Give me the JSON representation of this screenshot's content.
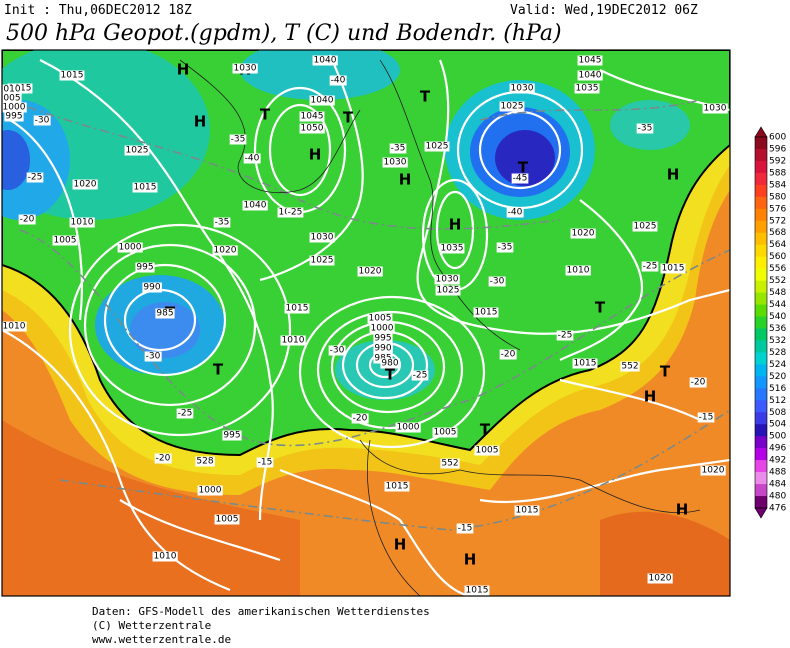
{
  "header": {
    "init": "Init : Thu,06DEC2012 18Z",
    "valid": "Valid: Wed,19DEC2012 06Z",
    "title": "500 hPa Geopot.(gpdm), T (C) und Bodendr. (hPa)"
  },
  "colorbar": {
    "ticks": [
      600,
      596,
      592,
      588,
      584,
      580,
      576,
      572,
      568,
      564,
      560,
      556,
      552,
      548,
      544,
      540,
      536,
      532,
      528,
      524,
      520,
      516,
      512,
      508,
      504,
      500,
      496,
      492,
      488,
      484,
      480,
      476
    ],
    "colors": [
      "#8c0a1e",
      "#b4102e",
      "#d8143c",
      "#f0283c",
      "#ff4020",
      "#ff6410",
      "#ff8200",
      "#ffa000",
      "#ffbe00",
      "#ffd800",
      "#fff000",
      "#f0ff00",
      "#c8f000",
      "#96e600",
      "#5adc00",
      "#28d228",
      "#00c864",
      "#00c8a0",
      "#00d2d2",
      "#00b4f0",
      "#1496ff",
      "#2878ff",
      "#3c5aff",
      "#3c3ce6",
      "#2814b4",
      "#7800c8",
      "#b400e6",
      "#e646e6",
      "#eb8ceb",
      "#c846c8",
      "#6e006e"
    ]
  },
  "map": {
    "centers": [
      "H",
      "H",
      "T",
      "H",
      "H",
      "T",
      "T",
      "H",
      "H",
      "T",
      "H",
      "T",
      "T",
      "T",
      "T",
      "T",
      "H",
      "H",
      "H",
      "H",
      "T"
    ],
    "isobar_labels": [
      "1015",
      "1030",
      "1040",
      "1045",
      "1040",
      "1030",
      "1035",
      "1025",
      "1030",
      "1040",
      "1045",
      "1050",
      "1025",
      "1020",
      "1015",
      "1010",
      "1005",
      "1000",
      "995",
      "990",
      "985",
      "1040",
      "1035",
      "1020",
      "1030",
      "1025",
      "1020",
      "1015",
      "1010",
      "1030",
      "1025",
      "1035",
      "1030",
      "1025",
      "1015",
      "1020",
      "1025",
      "1010",
      "1015",
      "1005",
      "1000",
      "995",
      "990",
      "985",
      "980",
      "1000",
      "1005",
      "1005",
      "995",
      "1000",
      "1005",
      "1010",
      "1015",
      "1015",
      "1020",
      "1015",
      "1020",
      "1015",
      "1010",
      "1015",
      "010",
      "005",
      "1000",
      "995"
    ],
    "temperature_labels": [
      "-30",
      "-25",
      "-20",
      "-35",
      "-40",
      "-35",
      "-40",
      "-35",
      "-45",
      "-40",
      "-35",
      "-30",
      "-25",
      "-20",
      "-30",
      "-25",
      "-20",
      "-35",
      "-25",
      "-20",
      "-15",
      "-15",
      "-20",
      "-25",
      "-30",
      "-15",
      "-25",
      "528",
      "552",
      "552"
    ]
  },
  "footer": [
    "Daten: GFS-Modell des amerikanischen Wetterdienstes",
    "(C) Wetterzentrale",
    "www.wetterzentrale.de"
  ]
}
